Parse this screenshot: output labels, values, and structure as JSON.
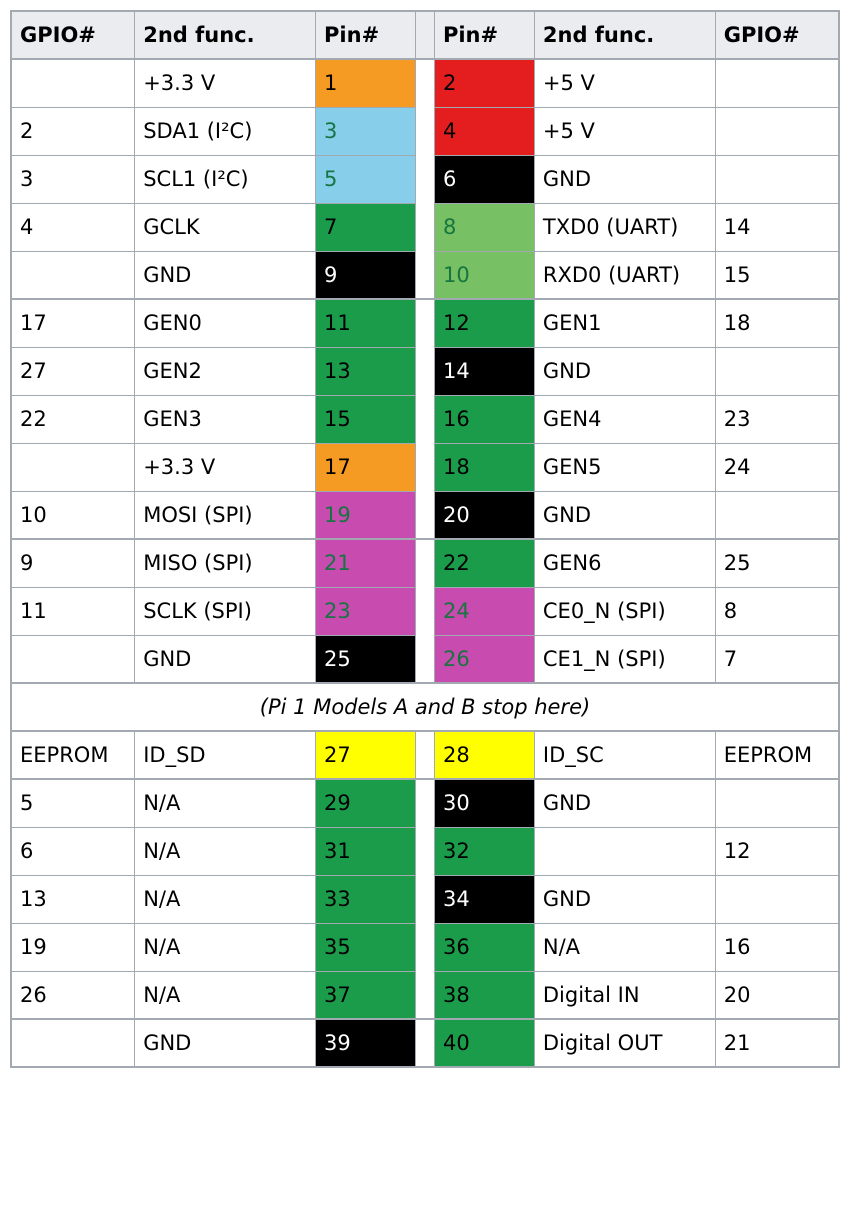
{
  "headers": {
    "gpio_l": "GPIO#",
    "func_l": "2nd func.",
    "pin_l": "Pin#",
    "pin_r": "Pin#",
    "func_r": "2nd func.",
    "gpio_r": "GPIO#"
  },
  "colors": {
    "orange": {
      "bg": "#f59a23",
      "fg": "#000000"
    },
    "red": {
      "bg": "#e41e1e",
      "fg": "#000000"
    },
    "cyan": {
      "bg": "#87ceeb",
      "fg": "#167541"
    },
    "black": {
      "bg": "#000000",
      "fg": "#ffffff"
    },
    "green": {
      "bg": "#1a9c4b",
      "fg": "#000000"
    },
    "lgreen": {
      "bg": "#77c063",
      "fg": "#167541"
    },
    "magenta": {
      "bg": "#c84bb0",
      "fg": "#167541"
    },
    "yellow": {
      "bg": "#ffff00",
      "fg": "#000000"
    },
    "none": {
      "bg": "#ffffff",
      "fg": "#000000"
    }
  },
  "note": "(Pi 1 Models A and B stop here)",
  "rows": [
    {
      "gpio_l": "",
      "func_l": "+3.3 V",
      "pin_l": "1",
      "col_l": "orange",
      "pin_r": "2",
      "col_r": "red",
      "func_r": "+5 V",
      "gpio_r": ""
    },
    {
      "gpio_l": "2",
      "func_l": "SDA1 (I²C)",
      "pin_l": "3",
      "col_l": "cyan",
      "pin_r": "4",
      "col_r": "red",
      "func_r": "+5 V",
      "gpio_r": ""
    },
    {
      "gpio_l": "3",
      "func_l": "SCL1 (I²C)",
      "pin_l": "5",
      "col_l": "cyan",
      "pin_r": "6",
      "col_r": "black",
      "func_r": "GND",
      "gpio_r": ""
    },
    {
      "gpio_l": "4",
      "func_l": "GCLK",
      "pin_l": "7",
      "col_l": "green",
      "pin_r": "8",
      "col_r": "lgreen",
      "func_r": "TXD0 (UART)",
      "gpio_r": "14"
    },
    {
      "gpio_l": "",
      "func_l": "GND",
      "pin_l": "9",
      "col_l": "black",
      "pin_r": "10",
      "col_r": "lgreen",
      "func_r": "RXD0 (UART)",
      "gpio_r": "15"
    },
    {
      "sep": true,
      "gpio_l": "17",
      "func_l": "GEN0",
      "pin_l": "11",
      "col_l": "green",
      "pin_r": "12",
      "col_r": "green",
      "func_r": "GEN1",
      "gpio_r": "18"
    },
    {
      "gpio_l": "27",
      "func_l": "GEN2",
      "pin_l": "13",
      "col_l": "green",
      "pin_r": "14",
      "col_r": "black",
      "func_r": "GND",
      "gpio_r": ""
    },
    {
      "gpio_l": "22",
      "func_l": "GEN3",
      "pin_l": "15",
      "col_l": "green",
      "pin_r": "16",
      "col_r": "green",
      "func_r": "GEN4",
      "gpio_r": "23"
    },
    {
      "gpio_l": "",
      "func_l": "+3.3 V",
      "pin_l": "17",
      "col_l": "orange",
      "pin_r": "18",
      "col_r": "green",
      "func_r": "GEN5",
      "gpio_r": "24"
    },
    {
      "gpio_l": "10",
      "func_l": "MOSI (SPI)",
      "pin_l": "19",
      "col_l": "magenta",
      "pin_r": "20",
      "col_r": "black",
      "func_r": "GND",
      "gpio_r": ""
    },
    {
      "sep": true,
      "gpio_l": "9",
      "func_l": "MISO (SPI)",
      "pin_l": "21",
      "col_l": "magenta",
      "pin_r": "22",
      "col_r": "green",
      "func_r": "GEN6",
      "gpio_r": "25"
    },
    {
      "gpio_l": "11",
      "func_l": "SCLK (SPI)",
      "pin_l": "23",
      "col_l": "magenta",
      "pin_r": "24",
      "col_r": "magenta",
      "func_r": "CE0_N (SPI)",
      "gpio_r": "8"
    },
    {
      "gpio_l": "",
      "func_l": "GND",
      "pin_l": "25",
      "col_l": "black",
      "pin_r": "26",
      "col_r": "magenta",
      "func_r": "CE1_N (SPI)",
      "gpio_r": "7"
    },
    {
      "note": true
    },
    {
      "gpio_l": "EEPROM",
      "func_l": "ID_SD",
      "pin_l": "27",
      "col_l": "yellow",
      "pin_r": "28",
      "col_r": "yellow",
      "func_r": "ID_SC",
      "gpio_r": "EEPROM"
    },
    {
      "sep": true,
      "gpio_l": "5",
      "func_l": "N/A",
      "pin_l": "29",
      "col_l": "green",
      "pin_r": "30",
      "col_r": "black",
      "func_r": "GND",
      "gpio_r": ""
    },
    {
      "gpio_l": "6",
      "func_l": "N/A",
      "pin_l": "31",
      "col_l": "green",
      "pin_r": "32",
      "col_r": "green",
      "func_r": "",
      "gpio_r": "12"
    },
    {
      "gpio_l": "13",
      "func_l": "N/A",
      "pin_l": "33",
      "col_l": "green",
      "pin_r": "34",
      "col_r": "black",
      "func_r": "GND",
      "gpio_r": ""
    },
    {
      "gpio_l": "19",
      "func_l": "N/A",
      "pin_l": "35",
      "col_l": "green",
      "pin_r": "36",
      "col_r": "green",
      "func_r": "N/A",
      "gpio_r": "16"
    },
    {
      "gpio_l": "26",
      "func_l": "N/A",
      "pin_l": "37",
      "col_l": "green",
      "pin_r": "38",
      "col_r": "green",
      "func_r": "Digital IN",
      "gpio_r": "20"
    },
    {
      "sep": true,
      "gpio_l": "",
      "func_l": "GND",
      "pin_l": "39",
      "col_l": "black",
      "pin_r": "40",
      "col_r": "green",
      "func_r": "Digital OUT",
      "gpio_r": "21"
    }
  ]
}
